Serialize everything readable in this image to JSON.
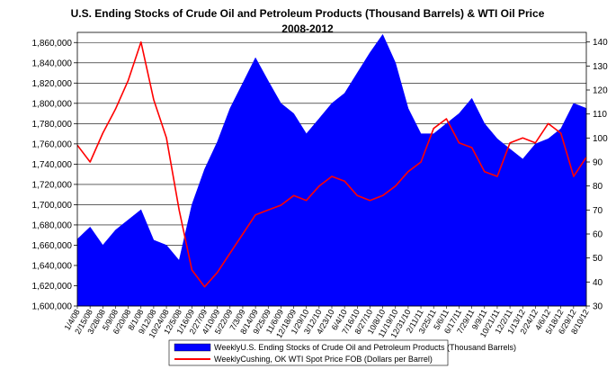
{
  "chart_data": {
    "type": "area+line",
    "title": "U.S. Ending Stocks of Crude Oil and Petroleum Products   (Thousand Barrels) & WTI Oil Price",
    "subtitle": "2008-2012",
    "categories": [
      "1/4/08",
      "2/15/08",
      "3/28/08",
      "5/9/08",
      "6/20/08",
      "8/1/08",
      "9/12/08",
      "10/24/08",
      "12/5/08",
      "1/16/09",
      "2/27/09",
      "4/10/09",
      "5/22/09",
      "7/3/09",
      "8/14/09",
      "9/25/09",
      "11/6/09",
      "12/18/09",
      "1/29/10",
      "3/12/10",
      "4/23/10",
      "6/4/10",
      "7/16/10",
      "8/27/10",
      "10/8/10",
      "11/19/10",
      "12/31/10",
      "2/11/11",
      "3/25/11",
      "5/6/11",
      "6/17/11",
      "7/29/11",
      "9/9/11",
      "10/21/11",
      "12/2/11",
      "1/13/12",
      "2/24/12",
      "4/6/12",
      "5/18/12",
      "6/29/12",
      "8/10/12"
    ],
    "y_left": {
      "ticks": [
        "1,600,000",
        "1,620,000",
        "1,640,000",
        "1,660,000",
        "1,680,000",
        "1,700,000",
        "1,720,000",
        "1,740,000",
        "1,760,000",
        "1,780,000",
        "1,800,000",
        "1,820,000",
        "1,840,000",
        "1,860,000"
      ],
      "ylim": [
        1600000,
        1870000
      ]
    },
    "y_right": {
      "ticks": [
        "30",
        "40",
        "50",
        "60",
        "70",
        "80",
        "90",
        "100",
        "110",
        "120",
        "130",
        "140"
      ],
      "ylim": [
        30,
        144
      ]
    },
    "grid": true,
    "legend_position": "bottom",
    "series": [
      {
        "name": "WeeklyU.S. Ending Stocks of Crude Oil and Petroleum Products  (Thousand Barrels)",
        "kind": "area",
        "axis": "left",
        "color": "#0000ff",
        "values": [
          1666000,
          1678000,
          1660000,
          1675000,
          1685000,
          1695000,
          1665000,
          1660000,
          1645000,
          1700000,
          1735000,
          1762000,
          1795000,
          1820000,
          1845000,
          1822000,
          1800000,
          1790000,
          1770000,
          1785000,
          1800000,
          1810000,
          1830000,
          1850000,
          1868000,
          1840000,
          1795000,
          1770000,
          1770000,
          1780000,
          1790000,
          1805000,
          1780000,
          1765000,
          1755000,
          1745000,
          1760000,
          1765000,
          1775000,
          1800000,
          1795000
        ]
      },
      {
        "name": "WeeklyCushing, OK WTI Spot Price FOB  (Dollars per Barrel)",
        "kind": "line",
        "axis": "right",
        "color": "#ff0000",
        "values": [
          97,
          90,
          102,
          112,
          124,
          140,
          116,
          100,
          70,
          45,
          38,
          44,
          52,
          60,
          68,
          70,
          72,
          76,
          74,
          80,
          84,
          82,
          76,
          74,
          76,
          80,
          86,
          90,
          104,
          108,
          98,
          96,
          86,
          84,
          98,
          100,
          98,
          106,
          102,
          84,
          92
        ]
      }
    ]
  }
}
